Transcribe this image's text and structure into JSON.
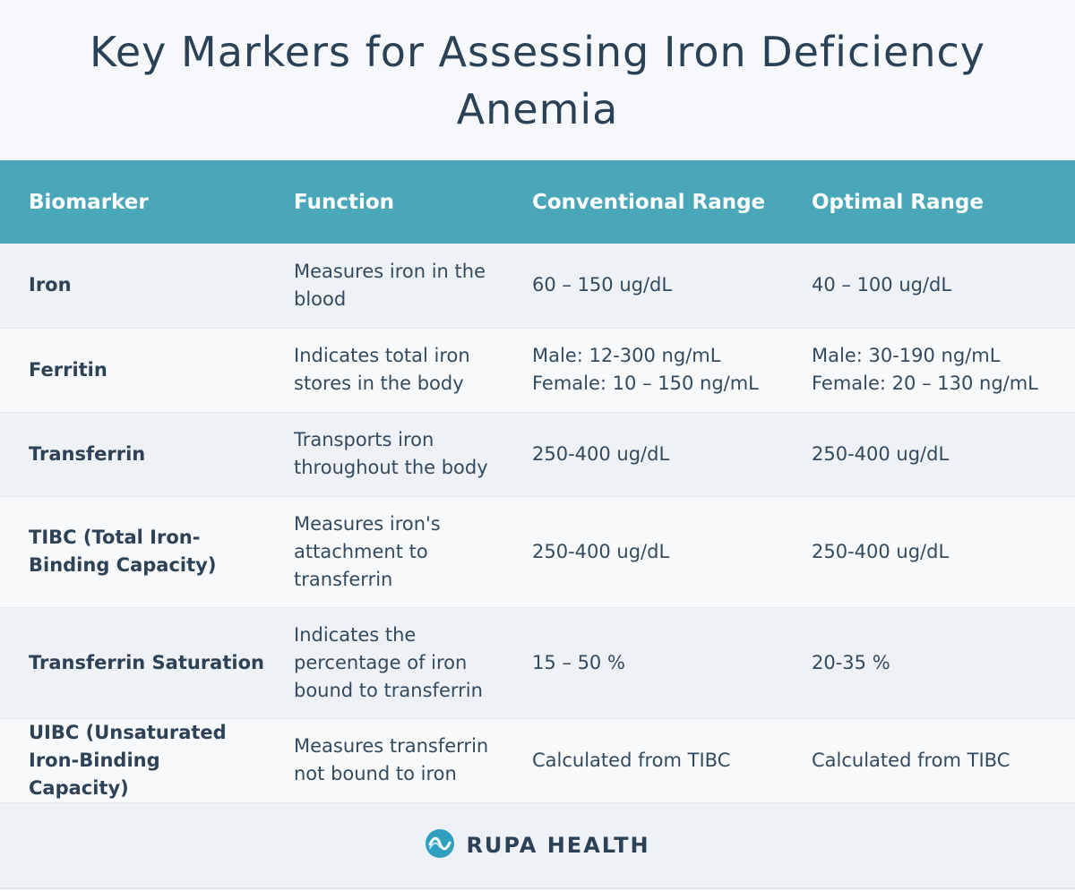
{
  "title": "Key Markers for Assessing Iron Deficiency Anemia",
  "table": {
    "headers": [
      "Biomarker",
      "Function",
      "Conventional Range",
      "Optimal Range"
    ],
    "rows": [
      {
        "biomarker": "Iron",
        "function": "Measures iron in the blood",
        "conventional": "60 – 150 ug/dL",
        "optimal": "40 – 100 ug/dL"
      },
      {
        "biomarker": "Ferritin",
        "function": "Indicates total iron stores in the body",
        "conventional": "Male: 12-300 ng/mL\nFemale: 10 – 150 ng/mL",
        "optimal": "Male: 30-190 ng/mL\nFemale: 20 – 130 ng/mL"
      },
      {
        "biomarker": "Transferrin",
        "function": "Transports iron throughout the body",
        "conventional": "250-400 ug/dL",
        "optimal": "250-400 ug/dL"
      },
      {
        "biomarker": "TIBC (Total Iron-Binding Capacity)",
        "function": "Measures iron's attachment to transferrin",
        "conventional": "250-400 ug/dL",
        "optimal": "250-400 ug/dL"
      },
      {
        "biomarker": "Transferrin Saturation",
        "function": "Indicates the percentage of iron bound to transferrin",
        "conventional": "15 – 50 %",
        "optimal": "20-35 %"
      },
      {
        "biomarker": "UIBC (Unsaturated Iron-Binding Capacity)",
        "function": "Measures transferrin not bound to iron",
        "conventional": "Calculated from TIBC",
        "optimal": "Calculated from TIBC"
      }
    ]
  },
  "footer": {
    "brand": "RUPA HEALTH",
    "logo_icon": "rupa-wave-logo-icon"
  },
  "colors": {
    "header_bg": "#4aa7ba",
    "text": "#2e4257",
    "logo": "#2f9fc0"
  }
}
